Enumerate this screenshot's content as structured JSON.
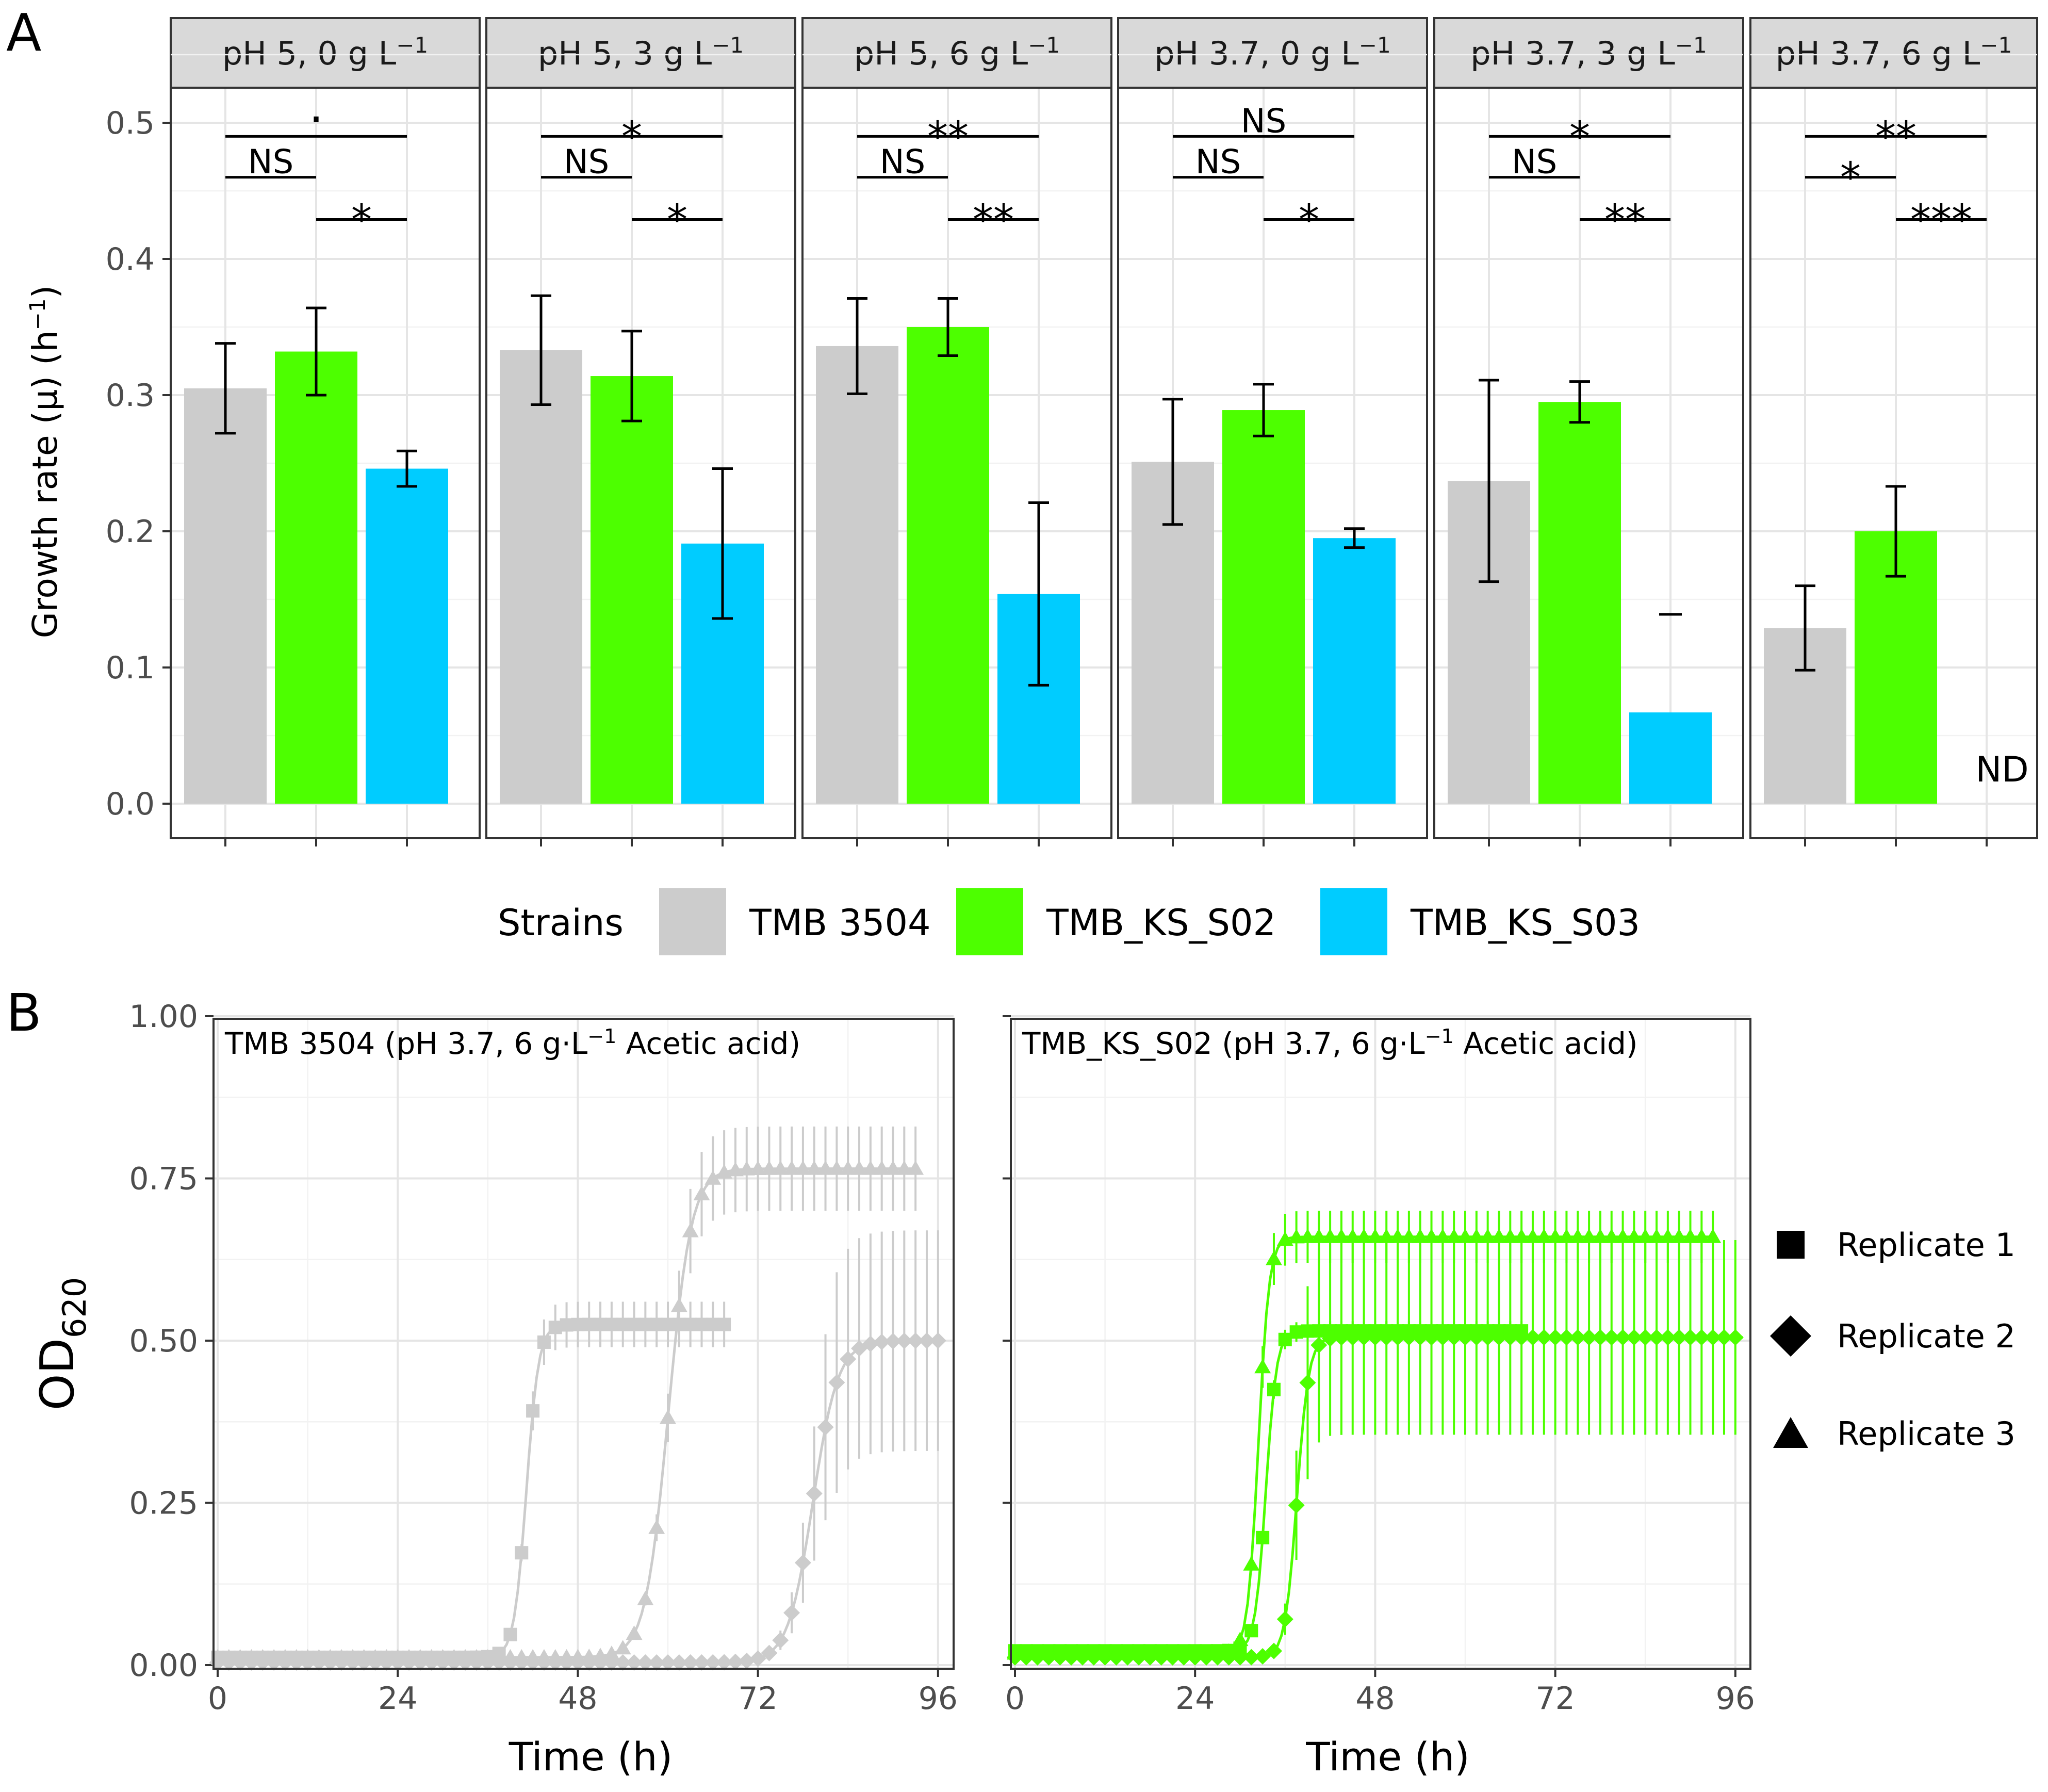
{
  "panel_labels": {
    "a": "A",
    "b": "B"
  },
  "colors": {
    "TMB 3504": "#cccccc",
    "TMB_KS_S02": "#4dff00",
    "TMB_KS_S03": "#00ccff",
    "text": "#000000",
    "tick_text": "#4d4d4d",
    "grid": "#e5e5e5",
    "strip": "#d9d9d9"
  },
  "legend_a": {
    "title": "Strains",
    "entries": [
      "TMB 3504",
      "TMB_KS_S02",
      "TMB_KS_S03"
    ]
  },
  "legend_b": {
    "entries": [
      {
        "label": "Replicate 1",
        "shape": "square-icon"
      },
      {
        "label": "Replicate 2",
        "shape": "diamond-icon"
      },
      {
        "label": "Replicate 3",
        "shape": "triangle-icon"
      }
    ]
  },
  "chart_data": [
    {
      "type": "bar",
      "id": "A",
      "ylabel": "Growth rate (μ) (h",
      "ylabel_sup": "−1",
      "ylabel_close": ")",
      "ylim": [
        0,
        0.55
      ],
      "yticks": [
        "0.0",
        "0.1",
        "0.2",
        "0.3",
        "0.4",
        "0.5"
      ],
      "ytick_values": [
        0,
        0.1,
        0.2,
        0.3,
        0.4,
        0.5
      ],
      "series_names": [
        "TMB 3504",
        "TMB_KS_S02",
        "TMB_KS_S03"
      ],
      "facets": [
        {
          "label_main": "pH 5, 0 g L",
          "label_sup": "−1",
          "values": [
            0.305,
            0.332,
            0.246
          ],
          "errors": [
            0.033,
            0.032,
            0.013
          ],
          "nd": "",
          "lone_marker": null,
          "significance": [
            {
              "from": 0,
              "to": 2,
              "label": "·",
              "level": 0.49
            },
            {
              "from": 0,
              "to": 1,
              "label": "NS",
              "level": 0.46
            },
            {
              "from": 1,
              "to": 2,
              "label": "*",
              "level": 0.429
            }
          ]
        },
        {
          "label_main": "pH 5, 3 g L",
          "label_sup": "−1",
          "values": [
            0.333,
            0.314,
            0.191
          ],
          "errors": [
            0.04,
            0.033,
            0.055
          ],
          "nd": "",
          "lone_marker": null,
          "significance": [
            {
              "from": 0,
              "to": 2,
              "label": "*",
              "level": 0.49
            },
            {
              "from": 0,
              "to": 1,
              "label": "NS",
              "level": 0.46
            },
            {
              "from": 1,
              "to": 2,
              "label": "*",
              "level": 0.429
            }
          ]
        },
        {
          "label_main": "pH 5, 6 g L",
          "label_sup": "−1",
          "values": [
            0.336,
            0.35,
            0.154
          ],
          "errors": [
            0.035,
            0.021,
            0.067
          ],
          "nd": "",
          "lone_marker": null,
          "significance": [
            {
              "from": 0,
              "to": 2,
              "label": "**",
              "level": 0.49
            },
            {
              "from": 0,
              "to": 1,
              "label": "NS",
              "level": 0.46
            },
            {
              "from": 1,
              "to": 2,
              "label": "**",
              "level": 0.429
            }
          ]
        },
        {
          "label_main": "pH 3.7, 0 g L",
          "label_sup": "−1",
          "values": [
            0.251,
            0.289,
            0.195
          ],
          "errors": [
            0.046,
            0.019,
            0.007
          ],
          "nd": "",
          "lone_marker": null,
          "significance": [
            {
              "from": 0,
              "to": 2,
              "label": "NS",
              "level": 0.49
            },
            {
              "from": 0,
              "to": 1,
              "label": "NS",
              "level": 0.46
            },
            {
              "from": 1,
              "to": 2,
              "label": "*",
              "level": 0.429
            }
          ]
        },
        {
          "label_main": "pH 3.7, 3 g L",
          "label_sup": "−1",
          "values": [
            0.237,
            0.295,
            0.067
          ],
          "errors": [
            0.074,
            0.015,
            null
          ],
          "nd": "",
          "lone_marker": 0.139,
          "significance": [
            {
              "from": 0,
              "to": 2,
              "label": "*",
              "level": 0.49
            },
            {
              "from": 0,
              "to": 1,
              "label": "NS",
              "level": 0.46
            },
            {
              "from": 1,
              "to": 2,
              "label": "**",
              "level": 0.429
            }
          ]
        },
        {
          "label_main": "pH 3.7, 6 g L",
          "label_sup": "−1",
          "values": [
            0.129,
            0.2,
            null
          ],
          "errors": [
            0.031,
            0.033,
            null
          ],
          "nd": "ND",
          "lone_marker": null,
          "significance": [
            {
              "from": 0,
              "to": 2,
              "label": "**",
              "level": 0.49
            },
            {
              "from": 0,
              "to": 1,
              "label": "*",
              "level": 0.46
            },
            {
              "from": 1,
              "to": 2,
              "label": "***",
              "level": 0.429
            }
          ]
        }
      ]
    },
    {
      "type": "scatter",
      "id": "B",
      "ylabel": "OD",
      "ylabel_sub": "620",
      "xlabel": "Time (h)",
      "xlim": [
        0,
        99
      ],
      "ylim": [
        0,
        1
      ],
      "xticks": [
        "0",
        "24",
        "48",
        "72",
        "96"
      ],
      "xtick_values": [
        0,
        24,
        48,
        72,
        96
      ],
      "yticks": [
        "0.00",
        "0.25",
        "0.50",
        "0.75",
        "1.00"
      ],
      "ytick_values": [
        0,
        0.25,
        0.5,
        0.75,
        1
      ],
      "facets": [
        {
          "title_main": "TMB 3504 (pH 3.7, 6 g·L",
          "title_sup": "−1",
          "title_end": " Acetic acid)",
          "color": "#cccccc",
          "series": [
            {
              "name": "Replicate 1",
              "shape": "square",
              "K": 0.525,
              "mu": 0.16,
              "lag": 39.5,
              "base": 0.012,
              "tmax": 68,
              "sd": 0.035
            },
            {
              "name": "Replicate 2",
              "shape": "diamond",
              "K": 0.5,
              "mu": 0.075,
              "lag": 76,
              "base": 0.004,
              "tmax": 96,
              "sd": 0.17
            },
            {
              "name": "Replicate 3",
              "shape": "triangle",
              "K": 0.765,
              "mu": 0.125,
              "lag": 57,
              "base": 0.012,
              "tmax": 93,
              "sd": 0.065
            }
          ]
        },
        {
          "title_main": "TMB_KS_S02 (pH 3.7, 6 g·L",
          "title_sup": "−1",
          "title_end": " Acetic acid)",
          "color": "#4dff00",
          "series": [
            {
              "name": "Replicate 1",
              "shape": "square",
              "K": 0.515,
              "mu": 0.18,
              "lag": 32,
              "base": 0.022,
              "tmax": 68,
              "sd": 0.015
            },
            {
              "name": "Replicate 2",
              "shape": "diamond",
              "K": 0.505,
              "mu": 0.16,
              "lag": 36,
              "base": 0.012,
              "tmax": 97,
              "sd": 0.15
            },
            {
              "name": "Replicate 3",
              "shape": "triangle",
              "K": 0.66,
              "mu": 0.23,
              "lag": 31,
              "base": 0.018,
              "tmax": 93,
              "sd": 0.04
            }
          ]
        }
      ]
    }
  ]
}
